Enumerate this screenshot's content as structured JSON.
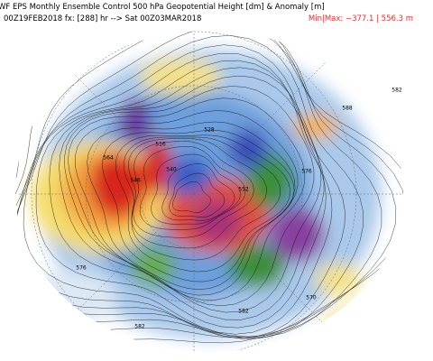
{
  "header": {
    "title": "WF EPS Monthly Ensemble Control 500 hPa Geopotential Height [dm] & Anomaly [m]",
    "valid": "00Z19FEB2018 fx: [288] hr --> Sat 00Z03MAR2018",
    "min_max": "Min|Max: −377.1 | 556.3 m"
  },
  "map": {
    "contour_labels": [
      "576",
      "582",
      "516",
      "528",
      "540",
      "546",
      "552",
      "564",
      "570",
      "576",
      "582",
      "582",
      "588"
    ]
  }
}
